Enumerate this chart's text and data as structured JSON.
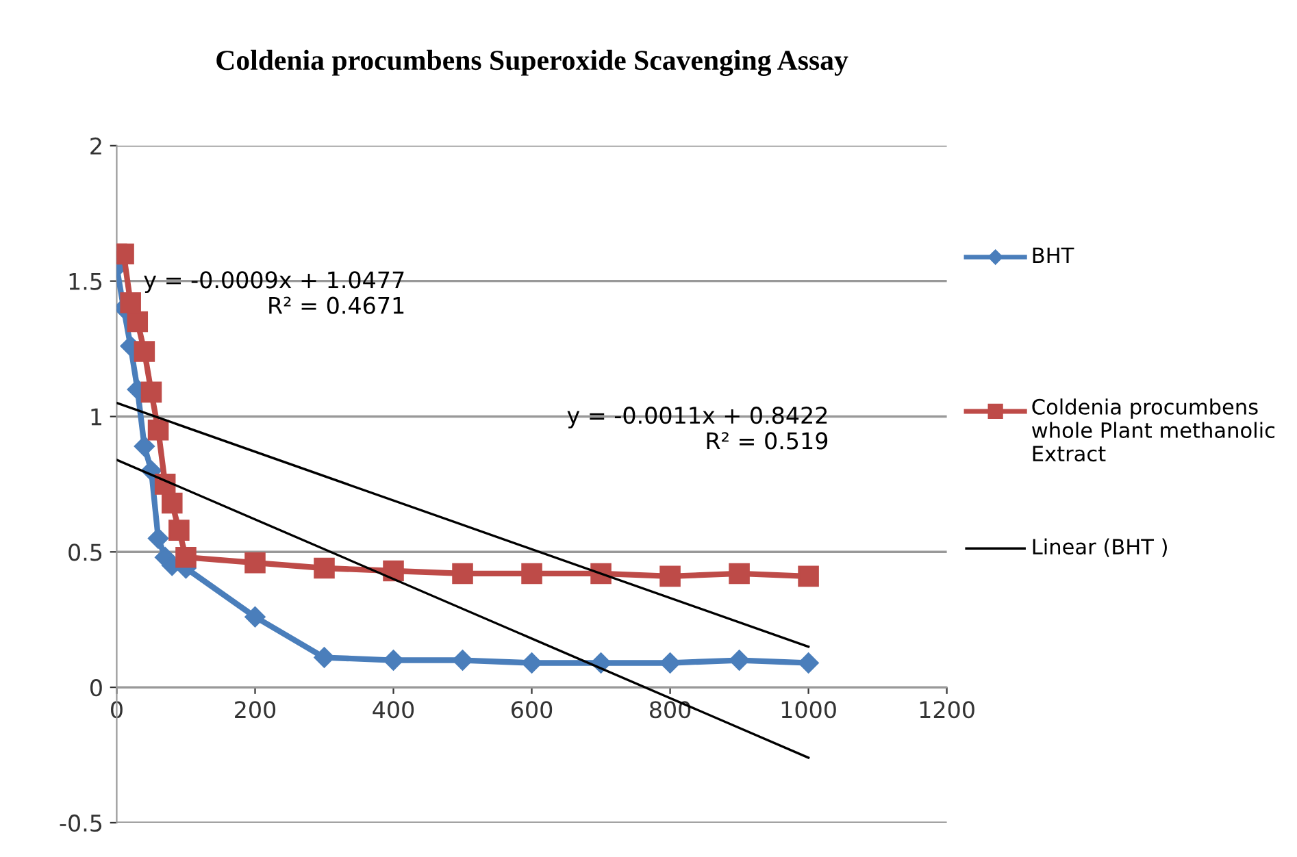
{
  "chart_data": {
    "type": "line",
    "title": "Coldenia procumbens Superoxide Scavenging Assay",
    "xlim": [
      0,
      1200
    ],
    "xticks": [
      0,
      200,
      400,
      600,
      800,
      1000,
      1200
    ],
    "ylim": [
      -0.5,
      2
    ],
    "yticks": [
      -0.5,
      0,
      0.5,
      1,
      1.5,
      2
    ],
    "grid": "y",
    "legend": "right",
    "series": [
      {
        "name": "BHT",
        "color": "#4a7ebb",
        "marker": "diamond",
        "x": [
          0,
          10,
          20,
          30,
          40,
          50,
          60,
          70,
          80,
          100,
          200,
          300,
          400,
          500,
          600,
          700,
          800,
          900,
          1000
        ],
        "values": [
          1.55,
          1.4,
          1.26,
          1.1,
          0.89,
          0.8,
          0.55,
          0.48,
          0.45,
          0.44,
          0.26,
          0.11,
          0.1,
          0.1,
          0.09,
          0.09,
          0.09,
          0.1,
          0.09
        ]
      },
      {
        "name": "Coldenia procumbens  whole Plant methanolic Extract",
        "color": "#be4b48",
        "marker": "square",
        "x": [
          0,
          10,
          20,
          30,
          40,
          50,
          60,
          70,
          80,
          90,
          100,
          200,
          300,
          400,
          500,
          600,
          700,
          800,
          900,
          1000
        ],
        "values": [
          1.6,
          1.6,
          1.42,
          1.35,
          1.24,
          1.09,
          0.95,
          0.75,
          0.68,
          0.58,
          0.48,
          0.46,
          0.44,
          0.43,
          0.42,
          0.42,
          0.42,
          0.41,
          0.42,
          0.41
        ]
      },
      {
        "name": "Linear (BHT )",
        "color": "#000000",
        "marker": "none",
        "x": [
          0,
          1000
        ],
        "values": [
          1.05,
          0.15
        ]
      },
      {
        "color": "#000000",
        "marker": "none",
        "x": [
          0,
          1000
        ],
        "values": [
          0.84,
          -0.26
        ]
      }
    ],
    "annotations": [
      "y = -0.0009x + 1.0477\nR² = 0.4671",
      "y = -0.0011x + 0.8422\nR² = 0.519"
    ]
  }
}
